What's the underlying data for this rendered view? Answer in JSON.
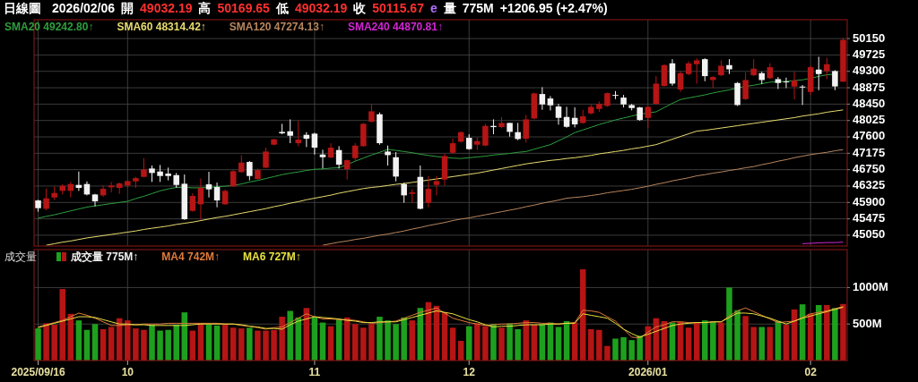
{
  "chart_data": [
    {
      "type": "candlestick",
      "annotations": [
        "日線圖",
        "2026/02/06",
        "開",
        "49032.19",
        "高",
        "50169.65",
        "低",
        "49032.19",
        "收",
        "50115.67",
        "e",
        "量",
        "775M",
        "+1206.95 (+2.47%)"
      ],
      "categories": [
        "2025/09/16",
        null,
        null,
        null,
        null,
        null,
        null,
        null,
        null,
        null,
        null,
        "10",
        null,
        null,
        null,
        null,
        null,
        null,
        null,
        null,
        null,
        null,
        null,
        null,
        null,
        null,
        null,
        null,
        null,
        null,
        null,
        null,
        null,
        null,
        "11",
        null,
        null,
        null,
        null,
        null,
        null,
        null,
        null,
        null,
        null,
        null,
        null,
        null,
        null,
        null,
        null,
        null,
        null,
        "12",
        null,
        null,
        null,
        null,
        null,
        null,
        null,
        null,
        null,
        null,
        null,
        null,
        null,
        null,
        null,
        null,
        null,
        null,
        null,
        null,
        null,
        "2026/01",
        null,
        null,
        null,
        null,
        null,
        null,
        null,
        null,
        null,
        null,
        null,
        null,
        null,
        null,
        null,
        null,
        null,
        null,
        null,
        "02",
        null,
        null,
        null,
        null
      ],
      "ohlc": [
        [
          45952,
          45968,
          45659,
          45751
        ],
        [
          45736,
          46262,
          45697,
          46007
        ],
        [
          46030,
          46316,
          45968,
          46146
        ],
        [
          46200,
          46370,
          46107,
          46331
        ],
        [
          46200,
          46432,
          46030,
          46378
        ],
        [
          46354,
          46702,
          46200,
          46277
        ],
        [
          46378,
          46447,
          46084,
          46107
        ],
        [
          46107,
          46122,
          45798,
          45929
        ],
        [
          46084,
          46339,
          46045,
          46254
        ],
        [
          46293,
          46432,
          46161,
          46339
        ],
        [
          46277,
          46416,
          46122,
          46393
        ],
        [
          46339,
          46471,
          46293,
          46455
        ],
        [
          46447,
          46563,
          46277,
          46532
        ],
        [
          46563,
          47050,
          46548,
          46756
        ],
        [
          46780,
          46857,
          46432,
          46664
        ],
        [
          46702,
          46872,
          46432,
          46586
        ],
        [
          46648,
          46803,
          46471,
          46586
        ],
        [
          46609,
          46664,
          46277,
          46354
        ],
        [
          46385,
          46625,
          45450,
          45465
        ],
        [
          45682,
          46138,
          45659,
          46068
        ],
        [
          45852,
          46525,
          45450,
          46277
        ],
        [
          46370,
          46695,
          46030,
          46239
        ],
        [
          46300,
          46416,
          45775,
          45952
        ],
        [
          45852,
          46239,
          45836,
          46200
        ],
        [
          46316,
          46741,
          46300,
          46710
        ],
        [
          46687,
          47127,
          46671,
          46934
        ],
        [
          46950,
          46973,
          46471,
          46586
        ],
        [
          46509,
          46780,
          46494,
          46741
        ],
        [
          46803,
          47321,
          46787,
          47220
        ],
        [
          47398,
          47553,
          47382,
          47537
        ],
        [
          47730,
          47939,
          47669,
          47692
        ],
        [
          47746,
          48055,
          47437,
          47630
        ],
        [
          47437,
          48016,
          47359,
          47529
        ],
        [
          47653,
          47723,
          47336,
          47553
        ],
        [
          47684,
          47707,
          47143,
          47321
        ],
        [
          47143,
          47267,
          46780,
          47073
        ],
        [
          47066,
          47437,
          47050,
          47321
        ],
        [
          47259,
          47360,
          46780,
          46880
        ],
        [
          46764,
          47012,
          46494,
          46996
        ],
        [
          47050,
          47437,
          46973,
          47375
        ],
        [
          47360,
          47962,
          47344,
          47939
        ],
        [
          47993,
          48457,
          47978,
          48264
        ],
        [
          48187,
          48233,
          47398,
          47437
        ],
        [
          47220,
          47375,
          46857,
          47127
        ],
        [
          47073,
          47205,
          46447,
          46571
        ],
        [
          46378,
          46416,
          45891,
          46084
        ],
        [
          46122,
          46239,
          45891,
          46161
        ],
        [
          46563,
          46857,
          45721,
          45736
        ],
        [
          45891,
          46586,
          45775,
          46254
        ],
        [
          46354,
          46586,
          46084,
          46455
        ],
        [
          46494,
          47166,
          46339,
          47104
        ],
        [
          47189,
          47553,
          47166,
          47437
        ],
        [
          47475,
          47746,
          47452,
          47723
        ],
        [
          47576,
          47669,
          47267,
          47282
        ],
        [
          47398,
          47576,
          47259,
          47491
        ],
        [
          47375,
          47939,
          47359,
          47885
        ],
        [
          47885,
          48055,
          47669,
          47854
        ],
        [
          47854,
          48117,
          47823,
          47962
        ],
        [
          47962,
          47962,
          47607,
          47730
        ],
        [
          47723,
          47962,
          47514,
          47545
        ],
        [
          47553,
          48171,
          47452,
          48055
        ],
        [
          48078,
          48751,
          48055,
          48728
        ],
        [
          48712,
          48890,
          48303,
          48442
        ],
        [
          48596,
          48658,
          48287,
          48419
        ],
        [
          48388,
          48457,
          47916,
          48094
        ],
        [
          48117,
          48380,
          47839,
          47862
        ],
        [
          48094,
          48365,
          47846,
          47924
        ],
        [
          47962,
          48303,
          47939,
          48133
        ],
        [
          48209,
          48441,
          48186,
          48379
        ],
        [
          48325,
          48519,
          48248,
          48457
        ],
        [
          48403,
          48750,
          48379,
          48735
        ],
        [
          48688,
          48789,
          48580,
          48673
        ],
        [
          48619,
          48689,
          48364,
          48441
        ],
        [
          48426,
          48457,
          48287,
          48348
        ],
        [
          48364,
          48379,
          48016,
          48039
        ],
        [
          48093,
          48403,
          47823,
          48379
        ],
        [
          48457,
          49176,
          48441,
          48982
        ],
        [
          48921,
          49485,
          48905,
          49462
        ],
        [
          49508,
          49616,
          48928,
          48982
        ],
        [
          48828,
          49307,
          48766,
          49253
        ],
        [
          49230,
          49562,
          49199,
          49508
        ],
        [
          49485,
          49639,
          48982,
          49585
        ],
        [
          49616,
          49639,
          49044,
          49176
        ],
        [
          49075,
          49176,
          48866,
          49152
        ],
        [
          49199,
          49585,
          49176,
          49446
        ],
        [
          49462,
          49616,
          49230,
          49353
        ],
        [
          48998,
          49021,
          48403,
          48426
        ],
        [
          48580,
          49276,
          48557,
          49075
        ],
        [
          49199,
          49616,
          49176,
          49369
        ],
        [
          49253,
          49292,
          48967,
          49075
        ],
        [
          49122,
          49508,
          49098,
          49407
        ],
        [
          49098,
          49152,
          48843,
          48998
        ],
        [
          49037,
          49137,
          48866,
          49021
        ],
        [
          48905,
          49292,
          48573,
          49060
        ],
        [
          48905,
          48944,
          48426,
          48890
        ],
        [
          48766,
          49446,
          48688,
          49408
        ],
        [
          49346,
          49678,
          48812,
          49230
        ],
        [
          49307,
          49655,
          49098,
          49485
        ],
        [
          49307,
          49330,
          48812,
          48909
        ],
        [
          49032.19,
          50169.65,
          49032.19,
          50115.67
        ]
      ],
      "colors": [
        "#f2f2f2",
        "#b51515",
        "#b51515",
        "#b51515",
        "#b51515",
        "#f2f2f2",
        "#f2f2f2",
        "#f2f2f2",
        "#b51515",
        "#b51515",
        "#b51515",
        "#b51515",
        "#b51515",
        "#b51515",
        "#f2f2f2",
        "#f2f2f2",
        "#f2f2f2",
        "#f2f2f2",
        "#f2f2f2",
        "#b51515",
        "#b51515",
        "#f2f2f2",
        "#f2f2f2",
        "#b51515",
        "#b51515",
        "#b51515",
        "#f2f2f2",
        "#b51515",
        "#b51515",
        "#b51515",
        "#f2f2f2",
        "#f2f2f2",
        "#b51515",
        "#f2f2f2",
        "#f2f2f2",
        "#f2f2f2",
        "#b51515",
        "#f2f2f2",
        "#b51515",
        "#b51515",
        "#b51515",
        "#b51515",
        "#f2f2f2",
        "#f2f2f2",
        "#f2f2f2",
        "#f2f2f2",
        "#b51515",
        "#f2f2f2",
        "#b51515",
        "#b51515",
        "#b51515",
        "#b51515",
        "#b51515",
        "#f2f2f2",
        "#b51515",
        "#b51515",
        "#f2f2f2",
        "#b51515",
        "#f2f2f2",
        "#f2f2f2",
        "#b51515",
        "#b51515",
        "#f2f2f2",
        "#f2f2f2",
        "#f2f2f2",
        "#f2f2f2",
        "#f2f2f2",
        "#b51515",
        "#b51515",
        "#b51515",
        "#b51515",
        "#f2f2f2",
        "#f2f2f2",
        "#f2f2f2",
        "#f2f2f2",
        "#b51515",
        "#b51515",
        "#b51515",
        "#f2f2f2",
        "#b51515",
        "#b51515",
        "#b51515",
        "#f2f2f2",
        "#b51515",
        "#b51515",
        "#f2f2f2",
        "#f2f2f2",
        "#b51515",
        "#b51515",
        "#f2f2f2",
        "#b51515",
        "#f2f2f2",
        "#f2f2f2",
        "#b51515",
        "#f2f2f2",
        "#b51515",
        "#f2f2f2",
        "#b51515",
        "#f2f2f2",
        "#b51515"
      ],
      "series": [
        {
          "name": "SMA20 49242.80↑",
          "type": "line",
          "color": "#2e9e3e",
          "values": [
            45490,
            45540,
            45580,
            45630,
            45680,
            45730,
            45780,
            45810,
            45840,
            45870,
            45900,
            45930,
            46000,
            46060,
            46130,
            46200,
            46250,
            46290,
            46290,
            46280,
            46280,
            46290,
            46310,
            46320,
            46340,
            46380,
            46430,
            46470,
            46520,
            46570,
            46620,
            46660,
            46690,
            46730,
            46760,
            46770,
            46790,
            46800,
            46880,
            46970,
            47050,
            47130,
            47200,
            47280,
            47250,
            47220,
            47190,
            47150,
            47120,
            47090,
            47070,
            47050,
            47040,
            47060,
            47080,
            47100,
            47130,
            47150,
            47170,
            47200,
            47220,
            47280,
            47340,
            47400,
            47500,
            47600,
            47710,
            47780,
            47850,
            47920,
            47980,
            48040,
            48090,
            48140,
            48190,
            48220,
            48250,
            48360,
            48470,
            48570,
            48610,
            48650,
            48690,
            48740,
            48780,
            48820,
            48870,
            48910,
            48940,
            48980,
            49020,
            49030,
            49040,
            49060,
            49080,
            49120,
            49170,
            49210,
            49230,
            null
          ]
        },
        {
          "name": "SMA60 48314.42↑",
          "type": "line",
          "color": "#e8dc70",
          "values": [
            null,
            44790,
            44830,
            44870,
            44900,
            44940,
            44980,
            45010,
            45040,
            45070,
            45100,
            45130,
            45160,
            45200,
            45230,
            45260,
            45290,
            45330,
            45360,
            45390,
            45430,
            45470,
            45510,
            45540,
            45580,
            45620,
            45660,
            45700,
            45740,
            45790,
            45830,
            45880,
            45920,
            45970,
            46010,
            46050,
            46090,
            46140,
            46180,
            46220,
            46260,
            46290,
            46310,
            46340,
            46370,
            46390,
            46420,
            46450,
            46480,
            46510,
            46540,
            46570,
            46600,
            46630,
            46660,
            46700,
            46740,
            46780,
            46820,
            46860,
            46900,
            46930,
            46960,
            46990,
            47010,
            47040,
            47060,
            47090,
            47120,
            47160,
            47190,
            47220,
            47250,
            47290,
            47320,
            47360,
            47400,
            47470,
            47540,
            47610,
            47680,
            47750,
            47770,
            47800,
            47830,
            47860,
            47890,
            47920,
            47950,
            47980,
            48010,
            48040,
            48070,
            48100,
            48140,
            48170,
            48200,
            48240,
            48270,
            48300
          ]
        },
        {
          "name": "SMA120 47274.13↑",
          "type": "line",
          "color": "#b8865e",
          "values": [
            null,
            null,
            null,
            null,
            null,
            null,
            null,
            null,
            null,
            null,
            null,
            null,
            null,
            null,
            null,
            null,
            null,
            null,
            null,
            null,
            null,
            null,
            null,
            null,
            null,
            null,
            null,
            null,
            null,
            null,
            null,
            null,
            null,
            null,
            null,
            44790,
            44830,
            44870,
            44900,
            44940,
            44970,
            45010,
            45050,
            45080,
            45120,
            45160,
            45210,
            45250,
            45300,
            45340,
            45380,
            45430,
            45470,
            45500,
            45540,
            45580,
            45620,
            45660,
            45700,
            45740,
            45790,
            45830,
            45880,
            45920,
            45960,
            46010,
            46030,
            46050,
            46080,
            46110,
            46150,
            46180,
            46210,
            46240,
            46280,
            46320,
            46370,
            46410,
            46460,
            46500,
            46540,
            46590,
            46620,
            46660,
            46690,
            46730,
            46760,
            46800,
            46830,
            46880,
            46920,
            46970,
            47010,
            47060,
            47100,
            47140,
            47170,
            47200,
            47240,
            47270
          ]
        },
        {
          "name": "SMA240 44870.81↑",
          "type": "line",
          "color": "#d424d4",
          "values": [
            null,
            null,
            null,
            null,
            null,
            null,
            null,
            null,
            null,
            null,
            null,
            null,
            null,
            null,
            null,
            null,
            null,
            null,
            null,
            null,
            null,
            null,
            null,
            null,
            null,
            null,
            null,
            null,
            null,
            null,
            null,
            null,
            null,
            null,
            null,
            null,
            null,
            null,
            null,
            null,
            null,
            null,
            null,
            null,
            null,
            null,
            null,
            null,
            null,
            null,
            null,
            null,
            null,
            null,
            null,
            null,
            null,
            null,
            null,
            null,
            null,
            null,
            null,
            null,
            null,
            null,
            null,
            null,
            null,
            null,
            null,
            null,
            null,
            null,
            null,
            null,
            null,
            null,
            null,
            null,
            null,
            null,
            null,
            null,
            null,
            null,
            null,
            null,
            null,
            null,
            null,
            null,
            null,
            null,
            44830,
            44840,
            44850,
            44860,
            44860,
            44870
          ]
        }
      ],
      "ylim": [
        44770,
        50640
      ],
      "yticks": [
        45050,
        45475,
        45900,
        46325,
        46750,
        47175,
        47600,
        48025,
        48450,
        48875,
        49300,
        49725,
        50150
      ],
      "tick_labels": "y",
      "grid": true,
      "legend": "top left"
    },
    {
      "type": "bar",
      "title": "成交量",
      "categories": [
        "2025/09/16",
        null,
        null,
        null,
        null,
        null,
        null,
        null,
        null,
        null,
        null,
        "10",
        null,
        null,
        null,
        null,
        null,
        null,
        null,
        null,
        null,
        null,
        null,
        null,
        null,
        null,
        null,
        null,
        null,
        null,
        null,
        null,
        null,
        null,
        "11",
        null,
        null,
        null,
        null,
        null,
        null,
        null,
        null,
        null,
        null,
        null,
        null,
        null,
        null,
        null,
        null,
        null,
        null,
        "12",
        null,
        null,
        null,
        null,
        null,
        null,
        null,
        null,
        null,
        null,
        null,
        null,
        null,
        null,
        null,
        null,
        null,
        null,
        null,
        null,
        null,
        "2026/01",
        null,
        null,
        null,
        null,
        null,
        null,
        null,
        null,
        null,
        null,
        null,
        null,
        null,
        null,
        null,
        null,
        null,
        null,
        null,
        "02",
        null,
        null,
        null,
        null
      ],
      "series": [
        {
          "name": "成交量 775M↑",
          "type": "bar",
          "color": "#f0f0f0",
          "values": [
            440,
            510,
            490,
            980,
            640,
            550,
            420,
            500,
            430,
            460,
            580,
            550,
            440,
            420,
            490,
            410,
            420,
            490,
            660,
            410,
            510,
            490,
            480,
            490,
            450,
            440,
            450,
            410,
            410,
            420,
            600,
            680,
            590,
            720,
            590,
            520,
            470,
            560,
            590,
            500,
            450,
            500,
            600,
            550,
            500,
            590,
            550,
            720,
            800,
            750,
            660,
            450,
            270,
            470,
            510,
            470,
            500,
            450,
            510,
            430,
            550,
            490,
            500,
            520,
            460,
            540,
            520,
            1250,
            430,
            420,
            200,
            300,
            320,
            280,
            340,
            470,
            580,
            540,
            520,
            530,
            450,
            520,
            550,
            530,
            520,
            1000,
            690,
            610,
            460,
            460,
            460,
            540,
            490,
            700,
            770,
            640,
            760,
            760,
            720,
            775
          ],
          "colors": [
            "#1ea01e",
            "#b51515",
            "#b51515",
            "#b51515",
            "#b51515",
            "#1ea01e",
            "#1ea01e",
            "#1ea01e",
            "#b51515",
            "#b51515",
            "#b51515",
            "#b51515",
            "#b51515",
            "#b51515",
            "#1ea01e",
            "#1ea01e",
            "#1ea01e",
            "#1ea01e",
            "#1ea01e",
            "#b51515",
            "#b51515",
            "#1ea01e",
            "#1ea01e",
            "#b51515",
            "#b51515",
            "#b51515",
            "#1ea01e",
            "#b51515",
            "#b51515",
            "#b51515",
            "#b51515",
            "#1ea01e",
            "#1ea01e",
            "#b51515",
            "#1ea01e",
            "#1ea01e",
            "#b51515",
            "#1ea01e",
            "#b51515",
            "#b51515",
            "#b51515",
            "#b51515",
            "#1ea01e",
            "#1ea01e",
            "#1ea01e",
            "#1ea01e",
            "#b51515",
            "#1ea01e",
            "#b51515",
            "#b51515",
            "#b51515",
            "#b51515",
            "#b51515",
            "#1ea01e",
            "#b51515",
            "#b51515",
            "#1ea01e",
            "#b51515",
            "#1ea01e",
            "#1ea01e",
            "#b51515",
            "#b51515",
            "#1ea01e",
            "#1ea01e",
            "#1ea01e",
            "#1ea01e",
            "#b51515",
            "#b51515",
            "#b51515",
            "#b51515",
            "#b51515",
            "#1ea01e",
            "#1ea01e",
            "#1ea01e",
            "#1ea01e",
            "#b51515",
            "#b51515",
            "#b51515",
            "#1ea01e",
            "#b51515",
            "#b51515",
            "#b51515",
            "#1ea01e",
            "#1ea01e",
            "#b51515",
            "#1ea01e",
            "#1ea01e",
            "#b51515",
            "#b51515",
            "#1ea01e",
            "#b51515",
            "#1ea01e",
            "#b51515",
            "#b51515",
            "#1ea01e",
            "#b51515",
            "#1ea01e",
            "#b51515",
            "#1ea01e",
            "#b51515"
          ]
        },
        {
          "name": "MA4 742M↑",
          "type": "line",
          "color": "#e07a3a",
          "values": [
            460,
            490,
            520,
            550,
            600,
            650,
            620,
            580,
            530,
            480,
            480,
            490,
            490,
            500,
            500,
            500,
            510,
            510,
            510,
            510,
            510,
            510,
            510,
            500,
            500,
            480,
            470,
            450,
            430,
            450,
            460,
            520,
            580,
            640,
            600,
            570,
            570,
            560,
            560,
            550,
            530,
            510,
            520,
            530,
            540,
            580,
            620,
            660,
            690,
            720,
            650,
            580,
            550,
            520,
            500,
            480,
            490,
            500,
            500,
            510,
            520,
            520,
            510,
            510,
            500,
            510,
            520,
            690,
            680,
            660,
            600,
            540,
            430,
            320,
            310,
            390,
            460,
            490,
            530,
            530,
            520,
            520,
            520,
            530,
            530,
            610,
            680,
            720,
            670,
            620,
            570,
            520,
            530,
            540,
            590,
            640,
            660,
            680,
            710,
            740
          ]
        },
        {
          "name": "MA6 727M↑",
          "type": "line",
          "color": "#e8e040",
          "values": [
            450,
            480,
            510,
            540,
            570,
            600,
            600,
            590,
            560,
            530,
            500,
            500,
            490,
            490,
            480,
            480,
            480,
            480,
            480,
            490,
            500,
            500,
            500,
            500,
            500,
            490,
            470,
            460,
            440,
            440,
            430,
            490,
            540,
            570,
            600,
            590,
            580,
            570,
            550,
            540,
            520,
            520,
            530,
            530,
            530,
            560,
            590,
            620,
            650,
            680,
            660,
            640,
            600,
            560,
            530,
            490,
            460,
            470,
            470,
            480,
            490,
            490,
            490,
            500,
            500,
            510,
            510,
            640,
            620,
            600,
            580,
            510,
            430,
            370,
            320,
            360,
            400,
            440,
            480,
            500,
            510,
            520,
            520,
            530,
            530,
            590,
            650,
            650,
            640,
            610,
            580,
            540,
            500,
            540,
            580,
            610,
            640,
            670,
            700,
            730
          ]
        }
      ],
      "ylim": [
        0,
        1520
      ],
      "yticks": [
        {
          "value": 500,
          "label": "500M"
        },
        {
          "value": 1000,
          "label": "1000M"
        }
      ],
      "grid": true,
      "legend": "top left"
    }
  ]
}
